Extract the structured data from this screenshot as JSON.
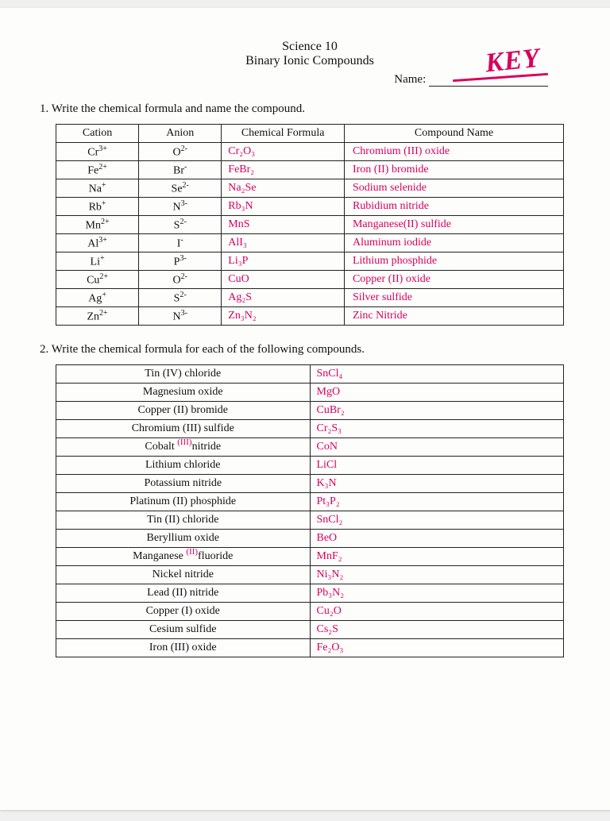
{
  "header": {
    "line1": "Science 10",
    "line2": "Binary Ionic Compounds",
    "name_label": "Name:",
    "key_text": "KEY"
  },
  "question1": "1.  Write the chemical formula and name the compound.",
  "table1": {
    "headers": [
      "Cation",
      "Anion",
      "Chemical Formula",
      "Compound Name"
    ],
    "rows": [
      {
        "cation_base": "Cr",
        "cation_sup": "3+",
        "anion_base": "O",
        "anion_sup": "2-",
        "formula": "Cr₂O₃",
        "name": "Chromium (III) oxide"
      },
      {
        "cation_base": "Fe",
        "cation_sup": "2+",
        "anion_base": "Br",
        "anion_sup": "-",
        "formula": "FeBr₂",
        "name": "Iron (II) bromide"
      },
      {
        "cation_base": "Na",
        "cation_sup": "+",
        "anion_base": "Se",
        "anion_sup": "2-",
        "formula": "Na₂Se",
        "name": "Sodium selenide"
      },
      {
        "cation_base": "Rb",
        "cation_sup": "+",
        "anion_base": "N",
        "anion_sup": "3-",
        "formula": "Rb₃N",
        "name": "Rubidium nitride"
      },
      {
        "cation_base": "Mn",
        "cation_sup": "2+",
        "anion_base": "S",
        "anion_sup": "2-",
        "formula": "MnS",
        "name": "Manganese(II) sulfide"
      },
      {
        "cation_base": "Al",
        "cation_sup": "3+",
        "anion_base": "I",
        "anion_sup": "-",
        "formula": "AlI₃",
        "name": "Aluminum iodide"
      },
      {
        "cation_base": "Li",
        "cation_sup": "+",
        "anion_base": "P",
        "anion_sup": "3-",
        "formula": "Li₃P",
        "name": "Lithium phosphide"
      },
      {
        "cation_base": "Cu",
        "cation_sup": "2+",
        "anion_base": "O",
        "anion_sup": "2-",
        "formula": "CuO",
        "name": "Copper (II) oxide"
      },
      {
        "cation_base": "Ag",
        "cation_sup": "+",
        "anion_base": "S",
        "anion_sup": "2-",
        "formula": "Ag₂S",
        "name": "Silver sulfide"
      },
      {
        "cation_base": "Zn",
        "cation_sup": "2+",
        "anion_base": "N",
        "anion_sup": "3-",
        "formula": "Zn₃N₂",
        "name": "Zinc Nitride"
      }
    ]
  },
  "question2": "2.  Write the chemical formula for each of the following compounds.",
  "table2": {
    "rows": [
      {
        "name": "Tin (IV) chloride",
        "formula": "SnCl₄",
        "anno": ""
      },
      {
        "name": "Magnesium oxide",
        "formula": "MgO",
        "anno": ""
      },
      {
        "name": "Copper (II) bromide",
        "formula": "CuBr₂",
        "anno": ""
      },
      {
        "name": "Chromium (III) sulfide",
        "formula": "Cr₂S₃",
        "anno": ""
      },
      {
        "name": "Cobalt nitride",
        "formula": "CoN",
        "anno": "(III)"
      },
      {
        "name": "Lithium chloride",
        "formula": "LiCl",
        "anno": ""
      },
      {
        "name": "Potassium nitride",
        "formula": "K₃N",
        "anno": ""
      },
      {
        "name": "Platinum (II) phosphide",
        "formula": "Pt₃P₂",
        "anno": ""
      },
      {
        "name": "Tin (II) chloride",
        "formula": "SnCl₂",
        "anno": ""
      },
      {
        "name": "Beryllium oxide",
        "formula": "BeO",
        "anno": ""
      },
      {
        "name": "Manganese fluoride",
        "formula": "MnF₂",
        "anno": "(II)"
      },
      {
        "name": "Nickel nitride",
        "formula": "Ni₃N₂",
        "anno": ""
      },
      {
        "name": "Lead (II) nitride",
        "formula": "Pb₃N₂",
        "anno": ""
      },
      {
        "name": "Copper (I) oxide",
        "formula": "Cu₂O",
        "anno": ""
      },
      {
        "name": "Cesium sulfide",
        "formula": "Cs₂S",
        "anno": ""
      },
      {
        "name": "Iron (III) oxide",
        "formula": "Fe₂O₃",
        "anno": ""
      }
    ]
  },
  "colors": {
    "handwriting": "#d9005b",
    "print": "#111111",
    "paper": "#fdfdfb",
    "border": "#222222"
  },
  "typography": {
    "print_font": "Times New Roman",
    "handwriting_font": "Comic Sans MS",
    "body_size_pt": 11,
    "header_size_pt": 12
  }
}
